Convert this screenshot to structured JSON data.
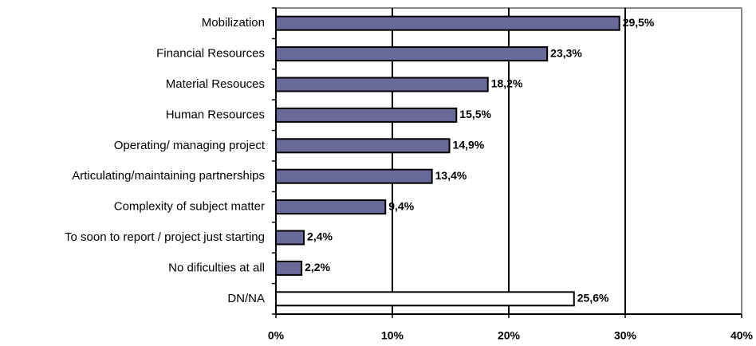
{
  "chart_data": {
    "type": "bar",
    "orientation": "horizontal",
    "categories": [
      "Mobilization",
      "Financial Resources",
      "Material Resouces",
      "Human Resources",
      "Operating/ managing project",
      "Articulating/maintaining partnerships",
      "Complexity of subject matter",
      "To soon to report / project just starting",
      "No dificulties at all",
      "DN/NA"
    ],
    "values": [
      29.5,
      23.3,
      18.2,
      15.5,
      14.9,
      13.4,
      9.4,
      2.4,
      2.2,
      25.6
    ],
    "value_labels": [
      "29,5%",
      "23,3%",
      "18,2%",
      "15,5%",
      "14,9%",
      "13,4%",
      "9,4%",
      "2,4%",
      "2,2%",
      "25,6%"
    ],
    "colors": [
      "#6a6a9a",
      "#6a6a9a",
      "#6a6a9a",
      "#6a6a9a",
      "#6a6a9a",
      "#6a6a9a",
      "#6a6a9a",
      "#6a6a9a",
      "#6a6a9a",
      "#ffffff"
    ],
    "xlim": [
      0,
      40
    ],
    "xticks": [
      {
        "value": 0,
        "label": "0%"
      },
      {
        "value": 10,
        "label": "10%"
      },
      {
        "value": 20,
        "label": "20%"
      },
      {
        "value": 30,
        "label": "30%"
      },
      {
        "value": 40,
        "label": "40%"
      }
    ],
    "grid": true
  }
}
